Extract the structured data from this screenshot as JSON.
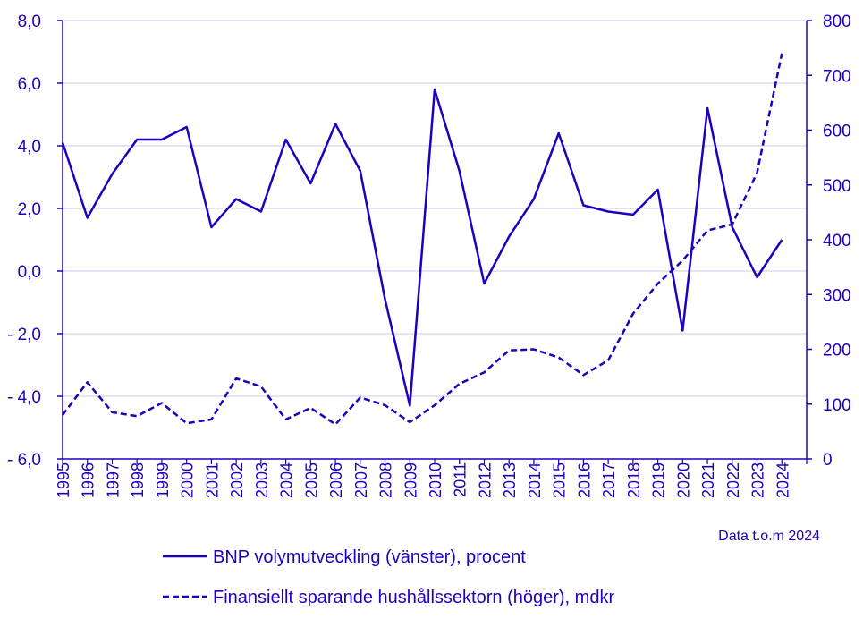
{
  "colors": {
    "series": "#1e00be",
    "grid": "#c8c8e6",
    "text": "#1e00be"
  },
  "chart_data": {
    "type": "line",
    "x": [
      1995,
      1996,
      1997,
      1998,
      1999,
      2000,
      2001,
      2002,
      2003,
      2004,
      2005,
      2006,
      2007,
      2008,
      2009,
      2010,
      2011,
      2012,
      2013,
      2014,
      2015,
      2016,
      2017,
      2018,
      2019,
      2020,
      2021,
      2022,
      2023,
      2024
    ],
    "xlabels": [
      "1995",
      "1996",
      "1997",
      "1998",
      "1999",
      "2000",
      "2001",
      "2002",
      "2003",
      "2004",
      "2005",
      "2006",
      "2007",
      "2008",
      "2009",
      "2010",
      "2011",
      "2012",
      "2013",
      "2014",
      "2015",
      "2016",
      "2017",
      "2018",
      "2019",
      "2020",
      "2021",
      "2022",
      "2023",
      "2024"
    ],
    "left_axis": {
      "ylim": [
        -6,
        8
      ],
      "ticks": [
        8,
        6,
        4,
        2,
        0,
        -2,
        -4,
        -6
      ],
      "tick_labels": [
        "8,0",
        "6,0",
        "4,0",
        "2,0",
        "0,0",
        "- 2,0",
        "- 4,0",
        "- 6,0"
      ]
    },
    "right_axis": {
      "ylim": [
        0,
        800
      ],
      "ticks": [
        800,
        700,
        600,
        500,
        400,
        300,
        200,
        100,
        0
      ],
      "tick_labels": [
        "800",
        "700",
        "600",
        "500",
        "400",
        "300",
        "200",
        "100",
        "0"
      ]
    },
    "grid": true,
    "series": [
      {
        "name": "BNP volymutveckling (vänster), procent",
        "axis": "left",
        "style": "solid",
        "values": [
          4.1,
          1.7,
          3.1,
          4.2,
          4.2,
          4.6,
          1.4,
          2.3,
          1.9,
          4.2,
          2.8,
          4.7,
          3.2,
          -0.9,
          -4.3,
          5.8,
          3.2,
          -0.4,
          1.1,
          2.3,
          4.4,
          2.1,
          1.9,
          1.8,
          2.6,
          -1.9,
          5.2,
          1.4,
          -0.2,
          1.0
        ]
      },
      {
        "name": "Finansiellt sparande hushållssektorn (höger), mdkr",
        "axis": "right",
        "style": "dashed",
        "values": [
          80,
          140,
          85,
          78,
          102,
          65,
          72,
          147,
          132,
          72,
          93,
          63,
          112,
          98,
          67,
          98,
          137,
          158,
          198,
          200,
          185,
          153,
          180,
          265,
          320,
          362,
          417,
          428,
          522,
          740
        ]
      }
    ],
    "note": "Data t.o.m 2024",
    "legend_position": "bottom"
  }
}
